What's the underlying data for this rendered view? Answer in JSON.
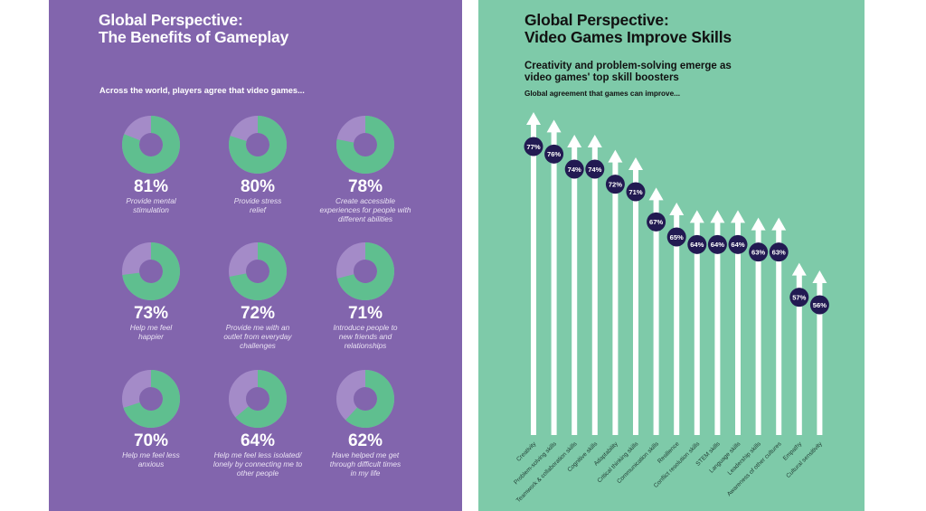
{
  "left": {
    "title_lines": [
      "Global Perspective:",
      "The Benefits of Gameplay"
    ],
    "intro": "Across the world, players agree that video games...",
    "colors": {
      "background": "#8265ad",
      "agree": "#5fbf8f",
      "rest": "#a48bc8"
    }
  },
  "right": {
    "title_lines": [
      "Global Perspective:",
      "Video Games Improve Skills"
    ],
    "subtitle_lines": [
      "Creativity and problem-solving emerge as",
      "video games' top skill boosters"
    ],
    "lead": "Global agreement that games can improve...",
    "colors": {
      "background": "#7ecaa9",
      "arrow": "#ffffff",
      "badge": "#221a52",
      "label": "#1f3d33"
    }
  },
  "chart_data": [
    {
      "type": "pie",
      "variant": "donut-grid",
      "title": "Across the world, players agree that video games...",
      "items": [
        {
          "value": 81,
          "label": "81%",
          "desc_lines": [
            "Provide mental",
            "stimulation"
          ]
        },
        {
          "value": 80,
          "label": "80%",
          "desc_lines": [
            "Provide stress",
            "relief"
          ]
        },
        {
          "value": 78,
          "label": "78%",
          "desc_lines": [
            "Create accessible",
            "experiences for people with",
            "different abilities"
          ]
        },
        {
          "value": 73,
          "label": "73%",
          "desc_lines": [
            "Help me feel",
            "happier"
          ]
        },
        {
          "value": 72,
          "label": "72%",
          "desc_lines": [
            "Provide me with an",
            "outlet from everyday",
            "challenges"
          ]
        },
        {
          "value": 71,
          "label": "71%",
          "desc_lines": [
            "Introduce people to",
            "new friends and",
            "relationships"
          ]
        },
        {
          "value": 70,
          "label": "70%",
          "desc_lines": [
            "Help me feel less",
            "anxious"
          ]
        },
        {
          "value": 64,
          "label": "64%",
          "desc_lines": [
            "Help me feel less isolated/",
            "lonely by connecting me to",
            "other people"
          ]
        },
        {
          "value": 62,
          "label": "62%",
          "desc_lines": [
            "Have helped me get",
            "through difficult times",
            "in my life"
          ]
        }
      ]
    },
    {
      "type": "bar",
      "variant": "arrow-columns",
      "title": "Global agreement that games can improve...",
      "ylabel": "",
      "xlabel": "",
      "categories": [
        "Creativity",
        "Problem-solving skills",
        "Teamwork & collaboration skills",
        "Cognitive skills",
        "Adaptability",
        "Critical thinking skills",
        "Communication skills",
        "Resilience",
        "Conflict resolution skills",
        "STEM skills",
        "Language skills",
        "Leadership skills",
        "Awareness of other cultures",
        "Empathy",
        "Cultural sensitivity"
      ],
      "values": [
        77,
        76,
        74,
        74,
        72,
        71,
        67,
        65,
        64,
        64,
        64,
        63,
        63,
        57,
        56
      ],
      "value_labels": [
        "77%",
        "76%",
        "74%",
        "74%",
        "72%",
        "71%",
        "67%",
        "65%",
        "64%",
        "64%",
        "64%",
        "63%",
        "63%",
        "57%",
        "56%"
      ]
    }
  ]
}
